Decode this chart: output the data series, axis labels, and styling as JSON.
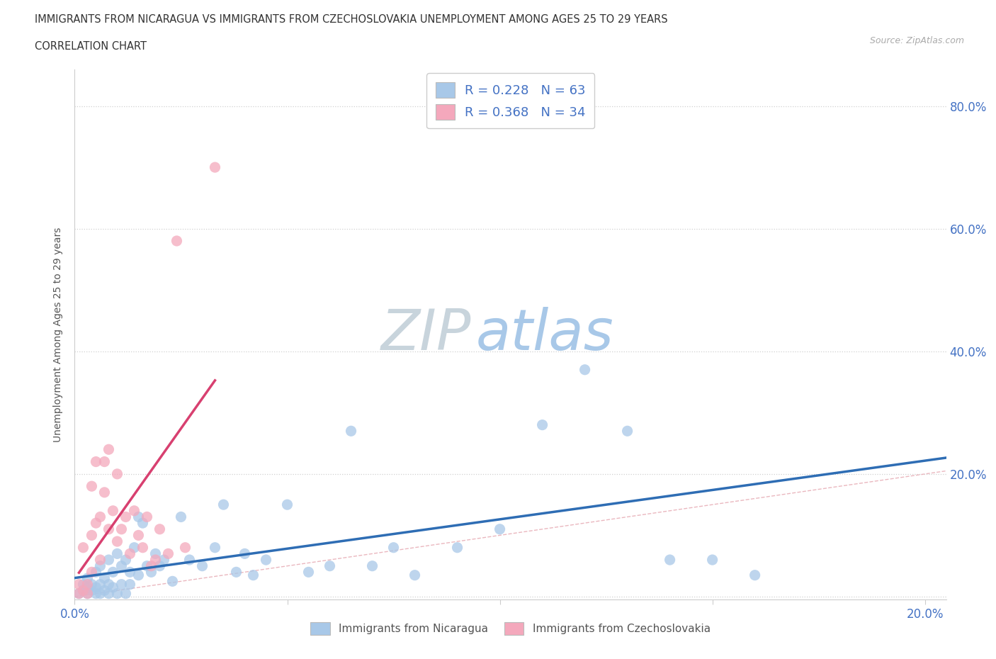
{
  "title_line1": "IMMIGRANTS FROM NICARAGUA VS IMMIGRANTS FROM CZECHOSLOVAKIA UNEMPLOYMENT AMONG AGES 25 TO 29 YEARS",
  "title_line2": "CORRELATION CHART",
  "source_text": "Source: ZipAtlas.com",
  "ylabel": "Unemployment Among Ages 25 to 29 years",
  "xlim": [
    0,
    0.205
  ],
  "ylim": [
    -0.005,
    0.86
  ],
  "xtick_positions": [
    0.0,
    0.05,
    0.1,
    0.15,
    0.2
  ],
  "ytick_positions": [
    0.0,
    0.2,
    0.4,
    0.6,
    0.8
  ],
  "nicaragua_R": 0.228,
  "nicaragua_N": 63,
  "czechoslovakia_R": 0.368,
  "czechoslovakia_N": 34,
  "nicaragua_color": "#a8c8e8",
  "czechoslovakia_color": "#f4a8bc",
  "nicaragua_line_color": "#2e6db4",
  "czechoslovakia_line_color": "#d84070",
  "diagonal_color": "#e8b0b8",
  "watermark_zip_color": "#c8d4dc",
  "watermark_atlas_color": "#a8c8e8",
  "background_color": "#ffffff",
  "grid_color": "#d0d0d0",
  "axis_label_color": "#4472c4",
  "legend_text_color": "#4472c4",
  "nicaragua_x": [
    0.001,
    0.002,
    0.002,
    0.003,
    0.003,
    0.003,
    0.004,
    0.004,
    0.005,
    0.005,
    0.005,
    0.006,
    0.006,
    0.006,
    0.007,
    0.007,
    0.008,
    0.008,
    0.008,
    0.009,
    0.009,
    0.01,
    0.01,
    0.011,
    0.011,
    0.012,
    0.012,
    0.013,
    0.013,
    0.014,
    0.015,
    0.015,
    0.016,
    0.017,
    0.018,
    0.019,
    0.02,
    0.021,
    0.023,
    0.025,
    0.027,
    0.03,
    0.033,
    0.035,
    0.038,
    0.04,
    0.042,
    0.045,
    0.05,
    0.055,
    0.06,
    0.065,
    0.07,
    0.075,
    0.08,
    0.09,
    0.1,
    0.11,
    0.12,
    0.13,
    0.14,
    0.15,
    0.16
  ],
  "nicaragua_y": [
    0.005,
    0.01,
    0.02,
    0.005,
    0.015,
    0.03,
    0.01,
    0.02,
    0.005,
    0.015,
    0.04,
    0.005,
    0.02,
    0.05,
    0.01,
    0.03,
    0.005,
    0.02,
    0.06,
    0.015,
    0.04,
    0.005,
    0.07,
    0.02,
    0.05,
    0.005,
    0.06,
    0.02,
    0.04,
    0.08,
    0.13,
    0.035,
    0.12,
    0.05,
    0.04,
    0.07,
    0.05,
    0.06,
    0.025,
    0.13,
    0.06,
    0.05,
    0.08,
    0.15,
    0.04,
    0.07,
    0.035,
    0.06,
    0.15,
    0.04,
    0.05,
    0.27,
    0.05,
    0.08,
    0.035,
    0.08,
    0.11,
    0.28,
    0.37,
    0.27,
    0.06,
    0.06,
    0.035
  ],
  "czechoslovakia_x": [
    0.001,
    0.001,
    0.002,
    0.002,
    0.003,
    0.003,
    0.004,
    0.004,
    0.004,
    0.005,
    0.005,
    0.006,
    0.006,
    0.007,
    0.007,
    0.008,
    0.008,
    0.009,
    0.01,
    0.01,
    0.011,
    0.012,
    0.013,
    0.014,
    0.015,
    0.016,
    0.017,
    0.018,
    0.019,
    0.02,
    0.022,
    0.024,
    0.026,
    0.033
  ],
  "czechoslovakia_y": [
    0.005,
    0.02,
    0.01,
    0.08,
    0.02,
    0.005,
    0.1,
    0.04,
    0.18,
    0.12,
    0.22,
    0.13,
    0.06,
    0.17,
    0.22,
    0.11,
    0.24,
    0.14,
    0.2,
    0.09,
    0.11,
    0.13,
    0.07,
    0.14,
    0.1,
    0.08,
    0.13,
    0.05,
    0.06,
    0.11,
    0.07,
    0.58,
    0.08,
    0.7
  ]
}
